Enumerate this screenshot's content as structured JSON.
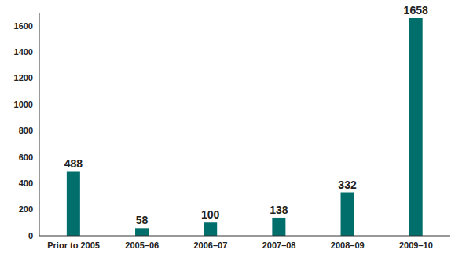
{
  "chart_data": {
    "type": "bar",
    "categories": [
      "Prior to 2005",
      "2005–06",
      "2006–07",
      "2007–08",
      "2008–09",
      "2009–10"
    ],
    "values": [
      488,
      58,
      100,
      138,
      332,
      1658
    ],
    "color": "#006e6b",
    "ylim": [
      0,
      1700
    ],
    "yticks": [
      0,
      200,
      400,
      600,
      800,
      1000,
      1200,
      1400,
      1600
    ],
    "grid": false,
    "data_labels": true
  }
}
